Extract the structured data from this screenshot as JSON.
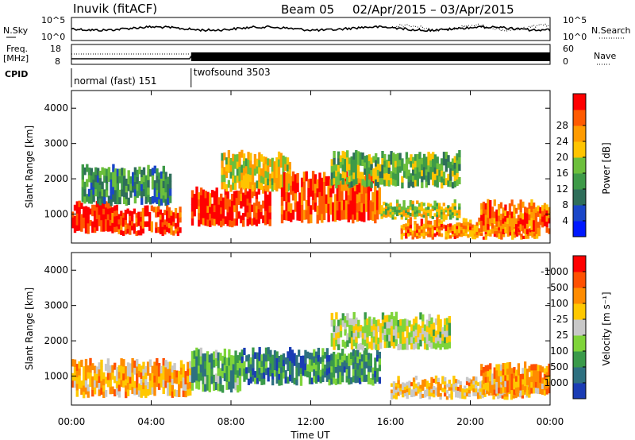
{
  "header": {
    "title": "Inuvik (fitACF)",
    "beam": "Beam 05",
    "dates": "02/Apr/2015 – 03/Apr/2015"
  },
  "strip_panels": {
    "nsky_label": "N.Sky",
    "nsky_ticks": [
      "10^5",
      "10^0"
    ],
    "nsearch_label": "N.Search",
    "nsearch_ticks": [
      "10^5",
      "10^0"
    ],
    "freq_label_1": "Freq.",
    "freq_label_2": "[MHz]",
    "freq_ticks": [
      "18",
      "8"
    ],
    "nave_label": "Nave",
    "nave_ticks": [
      "60",
      "0"
    ],
    "cpid_label": "CPID",
    "cpid_segments": [
      {
        "label": "normal (fast) 151",
        "start_hour": 0,
        "end_hour": 6
      },
      {
        "label": "twofsound 3503",
        "start_hour": 6,
        "end_hour": 24
      }
    ]
  },
  "chart_data": [
    {
      "type": "heatmap",
      "name": "power-panel",
      "ylabel": "Slant Range [km]",
      "xlabel": "Time UT",
      "x_ticks": [
        "00:00",
        "04:00",
        "08:00",
        "12:00",
        "16:00",
        "20:00",
        "00:00"
      ],
      "x_tick_hours": [
        0,
        4,
        8,
        12,
        16,
        20,
        24
      ],
      "y_ticks": [
        "1000",
        "2000",
        "3000",
        "4000"
      ],
      "y_tick_values": [
        1000,
        2000,
        3000,
        4000
      ],
      "ylim": [
        180,
        4500
      ],
      "xlim": [
        0,
        24
      ],
      "colorbar": {
        "label": "Power [dB]",
        "tick_labels": [
          "4",
          "8",
          "12",
          "16",
          "20",
          "24",
          "28"
        ],
        "colors": [
          "#0018ff",
          "#1a46c8",
          "#2f6e5a",
          "#3e9a48",
          "#6cbf3c",
          "#ffc400",
          "#ff9b00",
          "#ff5a00",
          "#ff0000"
        ]
      },
      "bands": [
        {
          "start": 0.0,
          "end": 2.0,
          "r0": 500,
          "r1": 1300,
          "level": 0.95
        },
        {
          "start": 2.0,
          "end": 5.5,
          "r0": 450,
          "r1": 1150,
          "level": 0.9
        },
        {
          "start": 0.5,
          "end": 5.0,
          "r0": 1300,
          "r1": 2300,
          "level": 0.35
        },
        {
          "start": 6.0,
          "end": 10.0,
          "r0": 700,
          "r1": 1700,
          "level": 0.92
        },
        {
          "start": 7.5,
          "end": 11.0,
          "r0": 1700,
          "r1": 2700,
          "level": 0.6
        },
        {
          "start": 10.5,
          "end": 15.5,
          "r0": 800,
          "r1": 2100,
          "level": 0.85
        },
        {
          "start": 13.0,
          "end": 19.5,
          "r0": 1800,
          "r1": 2700,
          "level": 0.45
        },
        {
          "start": 15.5,
          "end": 19.5,
          "r0": 900,
          "r1": 1300,
          "level": 0.55
        },
        {
          "start": 16.5,
          "end": 23.5,
          "r0": 350,
          "r1": 800,
          "level": 0.75
        },
        {
          "start": 20.5,
          "end": 24.0,
          "r0": 500,
          "r1": 1300,
          "level": 0.8
        }
      ]
    },
    {
      "type": "heatmap",
      "name": "velocity-panel",
      "ylabel": "Slant Range [km]",
      "xlabel": "Time UT",
      "x_ticks": [
        "00:00",
        "04:00",
        "08:00",
        "12:00",
        "16:00",
        "20:00",
        "00:00"
      ],
      "x_tick_hours": [
        0,
        4,
        8,
        12,
        16,
        20,
        24
      ],
      "y_ticks": [
        "1000",
        "2000",
        "3000",
        "4000"
      ],
      "y_tick_values": [
        1000,
        2000,
        3000,
        4000
      ],
      "ylim": [
        180,
        4500
      ],
      "xlim": [
        0,
        24
      ],
      "colorbar": {
        "label": "Velocity [m s⁻¹]",
        "tick_labels": [
          "1000",
          "500",
          "100",
          "25",
          "-25",
          "-100",
          "-500",
          "-1000"
        ],
        "colors": [
          "#1a3cb4",
          "#2e7080",
          "#3a9a4a",
          "#7fd43a",
          "#c8c8c8",
          "#ffc800",
          "#ff8c00",
          "#ff5000",
          "#ff0000"
        ]
      },
      "bands": [
        {
          "start": 0.0,
          "end": 6.0,
          "r0": 450,
          "r1": 1400,
          "level": 0.65
        },
        {
          "start": 6.0,
          "end": 8.5,
          "r0": 600,
          "r1": 1700,
          "level": 0.3
        },
        {
          "start": 8.5,
          "end": 12.0,
          "r0": 800,
          "r1": 1700,
          "level": 0.2
        },
        {
          "start": 12.0,
          "end": 15.5,
          "r0": 800,
          "r1": 1700,
          "level": 0.25
        },
        {
          "start": 13.0,
          "end": 19.0,
          "r0": 1800,
          "r1": 2700,
          "level": 0.48
        },
        {
          "start": 16.0,
          "end": 23.0,
          "r0": 400,
          "r1": 900,
          "level": 0.62
        },
        {
          "start": 20.5,
          "end": 24.0,
          "r0": 500,
          "r1": 1300,
          "level": 0.7
        }
      ]
    }
  ]
}
